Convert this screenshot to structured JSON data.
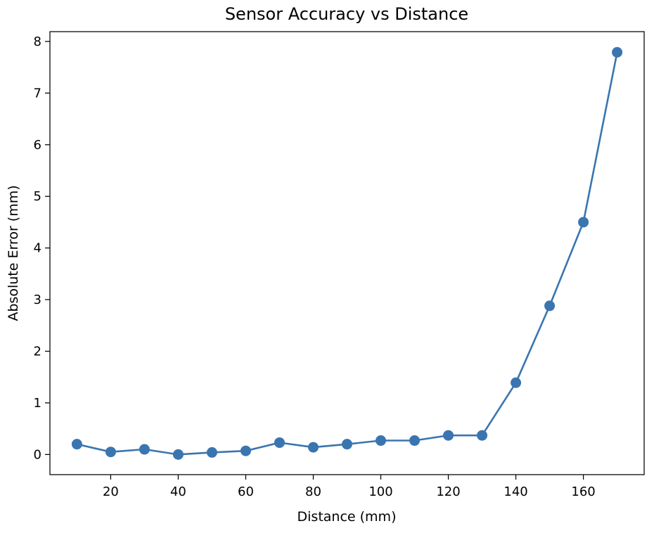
{
  "chart_data": {
    "type": "line",
    "title": "Sensor Accuracy vs Distance",
    "xlabel": "Distance (mm)",
    "ylabel": "Absolute Error (mm)",
    "xlim": [
      2,
      178
    ],
    "ylim": [
      -0.39,
      8.19
    ],
    "xticks": [
      20,
      40,
      60,
      80,
      100,
      120,
      140,
      160
    ],
    "yticks": [
      0,
      1,
      2,
      3,
      4,
      5,
      6,
      7,
      8
    ],
    "grid": false,
    "series": [
      {
        "color": "#3a75b0",
        "marker": "circle",
        "x": [
          10,
          20,
          30,
          40,
          50,
          60,
          70,
          80,
          90,
          100,
          110,
          120,
          130,
          140,
          150,
          160,
          170
        ],
        "y": [
          0.2,
          0.05,
          0.1,
          0.0,
          0.04,
          0.07,
          0.23,
          0.14,
          0.2,
          0.27,
          0.27,
          0.37,
          0.37,
          1.39,
          2.88,
          4.5,
          7.79
        ]
      }
    ]
  }
}
